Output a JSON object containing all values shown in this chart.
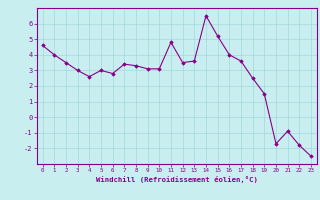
{
  "x": [
    0,
    1,
    2,
    3,
    4,
    5,
    6,
    7,
    8,
    9,
    10,
    11,
    12,
    13,
    14,
    15,
    16,
    17,
    18,
    19,
    20,
    21,
    22,
    23
  ],
  "y": [
    4.6,
    4.0,
    3.5,
    3.0,
    2.6,
    3.0,
    2.8,
    3.4,
    3.3,
    3.1,
    3.1,
    4.8,
    3.5,
    3.6,
    6.5,
    5.2,
    4.0,
    3.6,
    2.5,
    1.5,
    -1.7,
    -0.9,
    -1.8,
    -2.5
  ],
  "line_color": "#880088",
  "marker": "D",
  "marker_size": 1.8,
  "bg_color": "#c8eef0",
  "grid_color": "#a0d8dc",
  "xlabel": "Windchill (Refroidissement éolien,°C)",
  "xlabel_color": "#880088",
  "tick_color": "#880088",
  "spine_color": "#880088",
  "ylim": [
    -3,
    7
  ],
  "xlim": [
    -0.5,
    23.5
  ],
  "yticks": [
    -2,
    -1,
    0,
    1,
    2,
    3,
    4,
    5,
    6
  ],
  "xticks": [
    0,
    1,
    2,
    3,
    4,
    5,
    6,
    7,
    8,
    9,
    10,
    11,
    12,
    13,
    14,
    15,
    16,
    17,
    18,
    19,
    20,
    21,
    22,
    23
  ]
}
